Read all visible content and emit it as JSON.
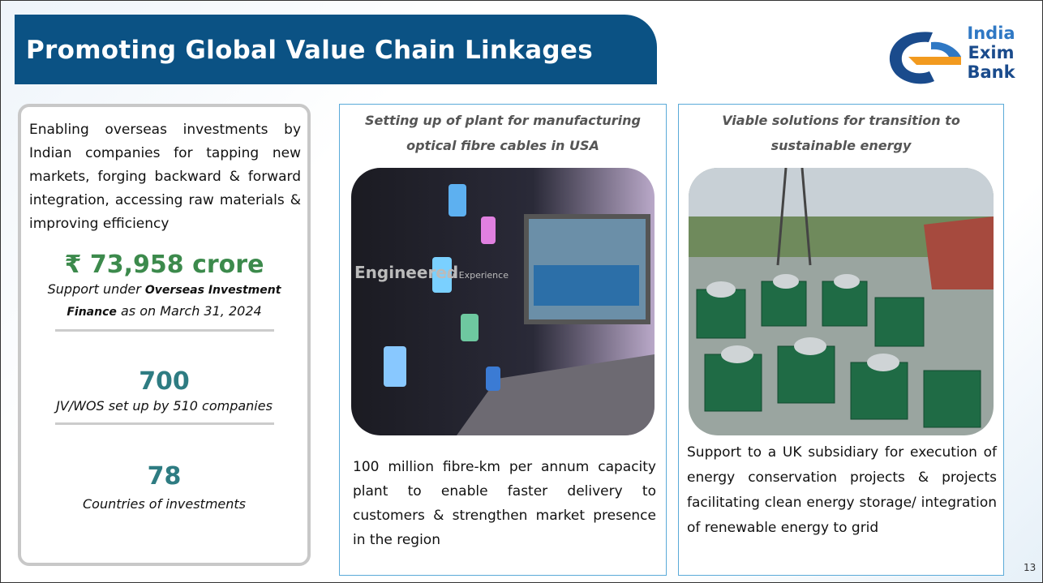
{
  "header": {
    "title": "Promoting Global Value Chain Linkages",
    "logo": [
      "India",
      "Exim",
      "Bank"
    ]
  },
  "left": {
    "description": "Enabling overseas investments by Indian companies for tapping new markets, forging backward & forward integration, accessing raw materials & improving efficiency",
    "stats": [
      {
        "value": "₹ 73,958 crore",
        "caption": [
          "Support under",
          "Overseas Investment Finance",
          "as on March 31, 2024"
        ]
      },
      {
        "value": "700",
        "caption": [
          "JV/WOS set up by 510 companies"
        ]
      },
      {
        "value": "78",
        "caption": [
          "Countries of investments"
        ]
      }
    ]
  },
  "cards": [
    {
      "heading": "Setting up of plant for manufacturing optical fibre cables in USA",
      "image_text": [
        "Engineered",
        "for Experience"
      ],
      "description": "100 million fibre-km per annum capacity plant to enable faster delivery to customers & strengthen market presence in the region"
    },
    {
      "heading": "Viable solutions for transition to sustainable energy",
      "description": "Support to a UK subsidiary for execution of energy conservation projects & projects facilitating clean energy storage/ integration of renewable energy to grid"
    }
  ],
  "page_number": "13"
}
